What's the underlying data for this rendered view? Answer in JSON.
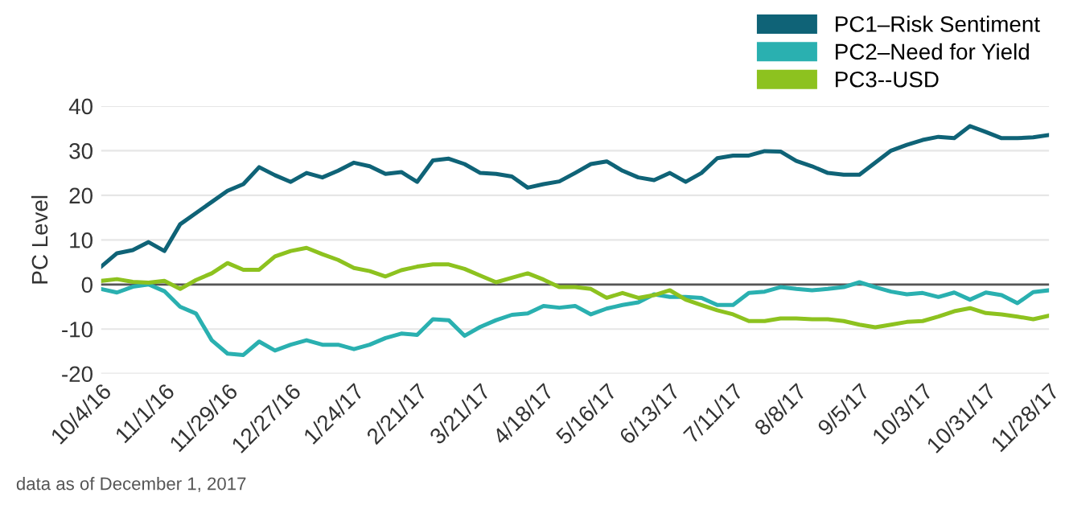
{
  "chart_data": {
    "type": "line",
    "ylabel": "PC Level",
    "x": [
      "2016-10-04",
      "2016-10-11",
      "2016-10-18",
      "2016-10-25",
      "2016-11-01",
      "2016-11-08",
      "2016-11-15",
      "2016-11-22",
      "2016-11-29",
      "2016-12-06",
      "2016-12-13",
      "2016-12-20",
      "2016-12-27",
      "2017-01-03",
      "2017-01-10",
      "2017-01-17",
      "2017-01-24",
      "2017-01-31",
      "2017-02-07",
      "2017-02-14",
      "2017-02-21",
      "2017-02-28",
      "2017-03-07",
      "2017-03-14",
      "2017-03-21",
      "2017-03-28",
      "2017-04-04",
      "2017-04-11",
      "2017-04-18",
      "2017-04-25",
      "2017-05-02",
      "2017-05-09",
      "2017-05-16",
      "2017-05-23",
      "2017-05-30",
      "2017-06-06",
      "2017-06-13",
      "2017-06-20",
      "2017-06-27",
      "2017-07-04",
      "2017-07-11",
      "2017-07-18",
      "2017-07-25",
      "2017-08-01",
      "2017-08-08",
      "2017-08-15",
      "2017-08-22",
      "2017-08-29",
      "2017-09-05",
      "2017-09-12",
      "2017-09-19",
      "2017-09-26",
      "2017-10-03",
      "2017-10-10",
      "2017-10-17",
      "2017-10-24",
      "2017-10-31",
      "2017-11-07",
      "2017-11-14",
      "2017-11-21",
      "2017-11-28"
    ],
    "series": [
      {
        "name": "PC1–Risk Sentiment",
        "color": "#0f6377",
        "values": [
          4,
          7,
          7.7,
          9.5,
          7.5,
          13.5,
          16,
          18.5,
          21,
          22.5,
          26.3,
          24.5,
          23,
          25,
          24,
          25.5,
          27.3,
          26.5,
          24.8,
          25.2,
          23,
          27.8,
          28.2,
          27,
          25,
          24.8,
          24.2,
          21.7,
          22.5,
          23.1,
          25,
          27,
          27.6,
          25.5,
          24,
          23.4,
          25,
          23,
          25,
          28.3,
          28.9,
          28.9,
          29.9,
          29.8,
          27.7,
          26.5,
          25,
          24.6,
          24.6,
          27.3,
          30,
          31.3,
          32.4,
          33.1,
          32.8,
          35.5,
          34.2,
          32.8,
          32.8,
          33,
          33.5
        ]
      },
      {
        "name": "PC2–Need for Yield",
        "color": "#2ab0b0",
        "values": [
          -1,
          -1.8,
          -0.5,
          0,
          -1.5,
          -5,
          -6.5,
          -12.5,
          -15.5,
          -15.8,
          -12.8,
          -14.8,
          -13.5,
          -12.5,
          -13.5,
          -13.5,
          -14.5,
          -13.5,
          -12,
          -11,
          -11.3,
          -7.8,
          -8,
          -11.5,
          -9.5,
          -8,
          -6.8,
          -6.5,
          -4.8,
          -5.2,
          -4.8,
          -6.7,
          -5.4,
          -4.6,
          -4,
          -2.2,
          -2.8,
          -2.8,
          -3,
          -4.6,
          -4.6,
          -1.9,
          -1.6,
          -0.6,
          -1,
          -1.3,
          -1,
          -0.6,
          0.5,
          -0.6,
          -1.6,
          -2.2,
          -1.9,
          -2.8,
          -1.8,
          -3.4,
          -1.8,
          -2.4,
          -4.2,
          -1.7,
          -1.3
        ]
      },
      {
        "name": "PC3--USD",
        "color": "#8dc21f",
        "values": [
          0.8,
          1.2,
          0.6,
          0.4,
          0.8,
          -1,
          1,
          2.5,
          4.8,
          3.3,
          3.3,
          6.3,
          7.5,
          8.2,
          6.8,
          5.5,
          3.7,
          3,
          1.8,
          3.2,
          4,
          4.5,
          4.5,
          3.5,
          2,
          0.5,
          1.5,
          2.5,
          1.1,
          -0.6,
          -0.6,
          -1,
          -3,
          -1.9,
          -3,
          -2.4,
          -1.3,
          -3.4,
          -4.6,
          -5.8,
          -6.7,
          -8.2,
          -8.2,
          -7.6,
          -7.6,
          -7.8,
          -7.8,
          -8.2,
          -9,
          -9.6,
          -9,
          -8.4,
          -8.2,
          -7.2,
          -6,
          -5.3,
          -6.4,
          -6.7,
          -7.2,
          -7.8,
          -7
        ]
      }
    ],
    "xlim": [
      "2016-10-04",
      "2017-11-28"
    ],
    "xticks": [
      {
        "value": "2016-10-04",
        "label": "10/4/16"
      },
      {
        "value": "2016-11-01",
        "label": "11/1/16"
      },
      {
        "value": "2016-11-29",
        "label": "11/29/16"
      },
      {
        "value": "2016-12-27",
        "label": "12/27/16"
      },
      {
        "value": "2017-01-24",
        "label": "1/24/17"
      },
      {
        "value": "2017-02-21",
        "label": "2/21/17"
      },
      {
        "value": "2017-03-21",
        "label": "3/21/17"
      },
      {
        "value": "2017-04-18",
        "label": "4/18/17"
      },
      {
        "value": "2017-05-16",
        "label": "5/16/17"
      },
      {
        "value": "2017-06-13",
        "label": "6/13/17"
      },
      {
        "value": "2017-07-11",
        "label": "7/11/17"
      },
      {
        "value": "2017-08-08",
        "label": "8/8/17"
      },
      {
        "value": "2017-09-05",
        "label": "9/5/17"
      },
      {
        "value": "2017-10-03",
        "label": "10/3/17"
      },
      {
        "value": "2017-10-31",
        "label": "10/31/17"
      },
      {
        "value": "2017-11-28",
        "label": "11/28/17"
      }
    ],
    "ylim": [
      -20,
      40
    ],
    "yticks": [
      -20,
      -10,
      0,
      10,
      20,
      30,
      40
    ],
    "ref_lines": [
      {
        "axis": "y",
        "value": 0,
        "color": "#555555"
      }
    ],
    "grid": "y",
    "legend": "top right",
    "marker": "none",
    "line_style": "solid",
    "annotations": [
      "data as of December 1, 2017"
    ]
  }
}
